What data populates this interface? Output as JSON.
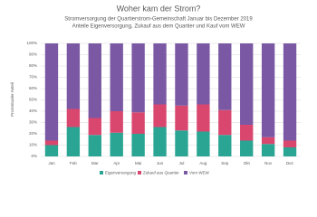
{
  "chart_data": {
    "type": "stacked-bar",
    "title": "Woher kam der Strom?",
    "subtitle": [
      "Stromversorgung  der Quartierstrom-Gemeinschaft  Januar bis Dezember 2019",
      "Anteile Eigenversorgung, Zukauf aus dem Quartier und Kauf vom WEW"
    ],
    "y_label": "Prozentualer Anteil",
    "categories": [
      "Jan",
      "Feb",
      "Mar",
      "Apr",
      "Mai",
      "Jun",
      "Jul",
      "Aug",
      "Sep",
      "Okt",
      "Nov",
      "Dez"
    ],
    "series": [
      {
        "name": "Eigenversorgung",
        "color": "#2aa493",
        "values": [
          10,
          26,
          19,
          21,
          20,
          26,
          23,
          22,
          19,
          14,
          11,
          8
        ]
      },
      {
        "name": "Zukauf aus Quartier",
        "color": "#d9476f",
        "values": [
          4,
          16,
          15,
          19,
          19,
          20,
          22,
          24,
          22,
          14,
          6,
          6
        ]
      },
      {
        "name": "Vom WEW",
        "color": "#7a58a3",
        "values": [
          86,
          58,
          66,
          60,
          61,
          54,
          55,
          54,
          59,
          72,
          83,
          86
        ]
      }
    ],
    "ylim": [
      0,
      100
    ],
    "yticks": [
      {
        "value": 0,
        "label": "0%"
      },
      {
        "value": 10,
        "label": "10%"
      },
      {
        "value": 20,
        "label": "20%"
      },
      {
        "value": 30,
        "label": "30%"
      },
      {
        "value": 40,
        "label": "40%"
      },
      {
        "value": 50,
        "label": "50%"
      },
      {
        "value": 60,
        "label": "60%"
      },
      {
        "value": 70,
        "label": "70%"
      },
      {
        "value": 80,
        "label": "80%"
      },
      {
        "value": 90,
        "label": "90%"
      },
      {
        "value": 100,
        "label": "100%"
      }
    ],
    "grid": true,
    "legend": "bottom"
  }
}
